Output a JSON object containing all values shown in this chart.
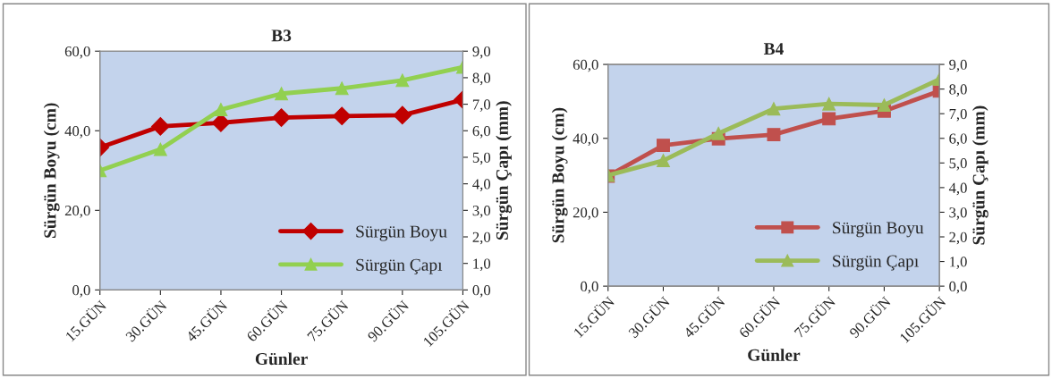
{
  "chart_data": [
    {
      "type": "line",
      "title": "B3",
      "xlabel": "Günler",
      "ylabel": "Sürgün Boyu (cm)",
      "y2label": "Sürgün Çapı (mm)",
      "categories": [
        "15.GÜN",
        "30.GÜN",
        "45.GÜN",
        "60.GÜN",
        "75.GÜN",
        "90.GÜN",
        "105.GÜN"
      ],
      "series": [
        {
          "name": "Sürgün Boyu",
          "color": "#c00000",
          "marker": "diamond",
          "values": [
            35.8,
            41.1,
            42.0,
            43.3,
            43.7,
            43.9,
            47.8
          ]
        },
        {
          "name": "Sürgün Çapı",
          "color": "#92d050",
          "marker": "triangle",
          "axis": "y2",
          "values": [
            4.5,
            5.3,
            6.8,
            7.4,
            7.6,
            7.9,
            8.4
          ]
        }
      ],
      "ylim": [
        0,
        60
      ],
      "yticks": [
        {
          "value": 0,
          "label": "0,0"
        },
        {
          "value": 20,
          "label": "20,0"
        },
        {
          "value": 40,
          "label": "40,0"
        },
        {
          "value": 60,
          "label": "60,0"
        }
      ],
      "y2lim": [
        0,
        9
      ],
      "y2ticks": [
        {
          "value": 0,
          "label": "0,0"
        },
        {
          "value": 1,
          "label": "1,0"
        },
        {
          "value": 2,
          "label": "2,0"
        },
        {
          "value": 3,
          "label": "3,0"
        },
        {
          "value": 4,
          "label": "4,0"
        },
        {
          "value": 5,
          "label": "5,0"
        },
        {
          "value": 6,
          "label": "6,0"
        },
        {
          "value": 7,
          "label": "7,0"
        },
        {
          "value": 8,
          "label": "8,0"
        },
        {
          "value": 9,
          "label": "9,0"
        }
      ],
      "legend": "bottom right",
      "grid": false
    },
    {
      "type": "line",
      "title": "B4",
      "xlabel": "Günler",
      "ylabel": "Sürgün Boyu (cm)",
      "y2label": "Sürgün Çapı (mm)",
      "categories": [
        "15.GÜN",
        "30.GÜN",
        "45.GÜN",
        "60.GÜN",
        "75.GÜN",
        "90.GÜN",
        "105.GÜN"
      ],
      "series": [
        {
          "name": "Sürgün Boyu",
          "color": "#c0504d",
          "marker": "square",
          "values": [
            29.8,
            38.1,
            39.9,
            41.0,
            45.3,
            47.4,
            52.8
          ]
        },
        {
          "name": "Sürgün Çapı",
          "color": "#9bbb59",
          "marker": "triangle",
          "axis": "y2",
          "values": [
            4.5,
            5.1,
            6.2,
            7.2,
            7.4,
            7.35,
            8.4
          ]
        }
      ],
      "ylim": [
        0,
        60
      ],
      "yticks": [
        {
          "value": 0,
          "label": "0,0"
        },
        {
          "value": 20,
          "label": "20,0"
        },
        {
          "value": 40,
          "label": "40,0"
        },
        {
          "value": 60,
          "label": "60,0"
        }
      ],
      "y2lim": [
        0,
        9
      ],
      "y2ticks": [
        {
          "value": 0,
          "label": "0,0"
        },
        {
          "value": 1,
          "label": "1,0"
        },
        {
          "value": 2,
          "label": "2,0"
        },
        {
          "value": 3,
          "label": "3,0"
        },
        {
          "value": 4,
          "label": "4,0"
        },
        {
          "value": 5,
          "label": "5,0"
        },
        {
          "value": 6,
          "label": "6,0"
        },
        {
          "value": 7,
          "label": "7,0"
        },
        {
          "value": 8,
          "label": "8,0"
        },
        {
          "value": 9,
          "label": "9,0"
        }
      ],
      "legend": "bottom right",
      "grid": false
    }
  ]
}
